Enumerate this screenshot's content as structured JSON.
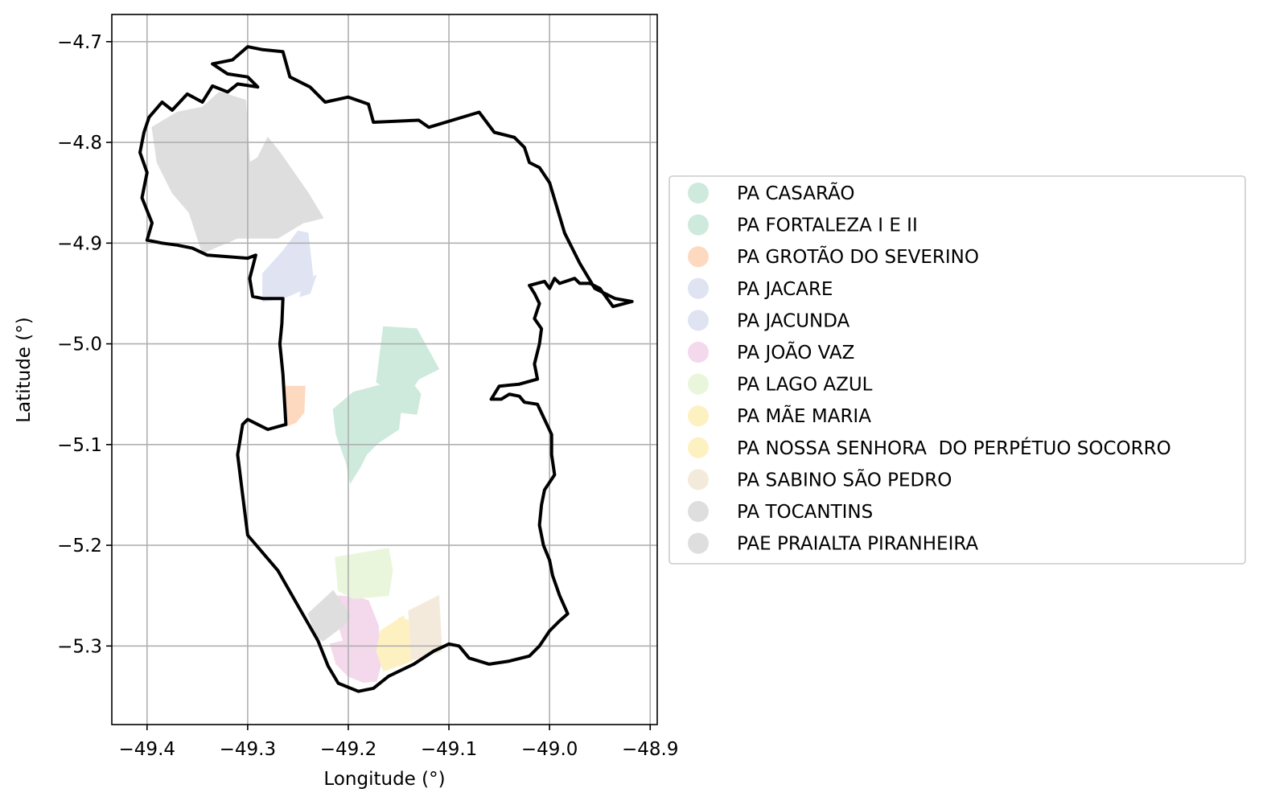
{
  "chart_data": {
    "type": "map",
    "xlabel": "Longitude (°)",
    "ylabel": "Latitude (°)",
    "xlim": [
      -49.435,
      -48.893
    ],
    "ylim": [
      -5.378,
      -4.673
    ],
    "x_ticks": [
      {
        "value": -49.4,
        "label": "−49.4"
      },
      {
        "value": -49.3,
        "label": "−49.3"
      },
      {
        "value": -49.2,
        "label": "−49.2"
      },
      {
        "value": -49.1,
        "label": "−49.1"
      },
      {
        "value": -49.0,
        "label": "−49.0"
      },
      {
        "value": -48.9,
        "label": "−48.9"
      }
    ],
    "y_ticks": [
      {
        "value": -4.7,
        "label": "−4.7"
      },
      {
        "value": -4.8,
        "label": "−4.8"
      },
      {
        "value": -4.9,
        "label": "−4.9"
      },
      {
        "value": -5.0,
        "label": "−5.0"
      },
      {
        "value": -5.1,
        "label": "−5.1"
      },
      {
        "value": -5.2,
        "label": "−5.2"
      },
      {
        "value": -5.3,
        "label": "−5.3"
      }
    ],
    "grid": true,
    "legend_position": "right",
    "boundary_color": "#000000",
    "settlements": [
      {
        "name": "PA CASARÃO",
        "color": "#cdeadc",
        "polygon": [
          [
            -49.132,
            -4.985
          ],
          [
            -49.165,
            -4.983
          ],
          [
            -49.172,
            -5.038
          ],
          [
            -49.16,
            -5.045
          ],
          [
            -49.14,
            -5.05
          ],
          [
            -49.13,
            -5.035
          ],
          [
            -49.11,
            -5.025
          ]
        ]
      },
      {
        "name": "PA FORTALEZA I E II",
        "color": "#cdeadc",
        "polygon": [
          [
            -49.215,
            -5.065
          ],
          [
            -49.195,
            -5.048
          ],
          [
            -49.165,
            -5.04
          ],
          [
            -49.143,
            -5.03
          ],
          [
            -49.128,
            -5.05
          ],
          [
            -49.132,
            -5.07
          ],
          [
            -49.148,
            -5.068
          ],
          [
            -49.15,
            -5.085
          ],
          [
            -49.17,
            -5.098
          ],
          [
            -49.182,
            -5.11
          ],
          [
            -49.188,
            -5.122
          ],
          [
            -49.198,
            -5.138
          ],
          [
            -49.202,
            -5.118
          ],
          [
            -49.212,
            -5.09
          ]
        ]
      },
      {
        "name": "PA GROTÃO DO SEVERINO",
        "color": "#fdd9bf",
        "polygon": [
          [
            -49.262,
            -5.042
          ],
          [
            -49.243,
            -5.042
          ],
          [
            -49.244,
            -5.068
          ],
          [
            -49.252,
            -5.078
          ],
          [
            -49.262,
            -5.082
          ]
        ]
      },
      {
        "name": "PA JACARE",
        "color": "#dfe3f2",
        "polygon": [
          [
            -49.285,
            -4.93
          ],
          [
            -49.265,
            -4.908
          ],
          [
            -49.25,
            -4.888
          ],
          [
            -49.24,
            -4.89
          ],
          [
            -49.235,
            -4.935
          ],
          [
            -49.242,
            -4.945
          ],
          [
            -49.265,
            -4.955
          ],
          [
            -49.285,
            -4.958
          ]
        ]
      },
      {
        "name": "PA JACUNDA",
        "color": "#dfe3f2",
        "polygon": [
          [
            -49.245,
            -4.94
          ],
          [
            -49.232,
            -4.932
          ],
          [
            -49.238,
            -4.95
          ],
          [
            -49.248,
            -4.953
          ]
        ]
      },
      {
        "name": "PA JOÃO VAZ",
        "color": "#f4d8ec",
        "polygon": [
          [
            -49.21,
            -5.25
          ],
          [
            -49.19,
            -5.252
          ],
          [
            -49.18,
            -5.255
          ],
          [
            -49.17,
            -5.28
          ],
          [
            -49.168,
            -5.32
          ],
          [
            -49.172,
            -5.335
          ],
          [
            -49.185,
            -5.336
          ],
          [
            -49.2,
            -5.33
          ],
          [
            -49.212,
            -5.318
          ],
          [
            -49.218,
            -5.298
          ],
          [
            -49.205,
            -5.295
          ],
          [
            -49.212,
            -5.272
          ]
        ]
      },
      {
        "name": "PA LAGO AZUL",
        "color": "#eaf6db",
        "polygon": [
          [
            -49.213,
            -5.212
          ],
          [
            -49.16,
            -5.203
          ],
          [
            -49.156,
            -5.225
          ],
          [
            -49.16,
            -5.25
          ],
          [
            -49.195,
            -5.253
          ],
          [
            -49.21,
            -5.245
          ]
        ]
      },
      {
        "name": "PA MÃE MARIA",
        "color": "#fdf1c2",
        "polygon": [
          [
            -49.168,
            -5.285
          ],
          [
            -49.145,
            -5.27
          ],
          [
            -49.137,
            -5.315
          ],
          [
            -49.165,
            -5.325
          ],
          [
            -49.172,
            -5.305
          ]
        ]
      },
      {
        "name": "PA NOSSA SENHORA  DO PERPÉTUO SOCORRO",
        "color": "#fdf1c2",
        "polygon": [
          [
            -49.15,
            -5.272
          ],
          [
            -49.138,
            -5.275
          ],
          [
            -49.136,
            -5.31
          ],
          [
            -49.148,
            -5.3
          ]
        ]
      },
      {
        "name": "PA SABINO SÃO PEDRO",
        "color": "#f4eadc",
        "polygon": [
          [
            -49.14,
            -5.265
          ],
          [
            -49.11,
            -5.25
          ],
          [
            -49.107,
            -5.305
          ],
          [
            -49.137,
            -5.314
          ]
        ]
      },
      {
        "name": "PA TOCANTINS",
        "color": "#dedede",
        "polygon": [
          [
            -49.395,
            -4.785
          ],
          [
            -49.37,
            -4.77
          ],
          [
            -49.345,
            -4.765
          ],
          [
            -49.328,
            -4.75
          ],
          [
            -49.302,
            -4.758
          ],
          [
            -49.3,
            -4.79
          ],
          [
            -49.298,
            -4.82
          ],
          [
            -49.29,
            -4.815
          ],
          [
            -49.28,
            -4.795
          ],
          [
            -49.268,
            -4.81
          ],
          [
            -49.24,
            -4.85
          ],
          [
            -49.225,
            -4.875
          ],
          [
            -49.245,
            -4.88
          ],
          [
            -49.27,
            -4.895
          ],
          [
            -49.31,
            -4.895
          ],
          [
            -49.345,
            -4.91
          ],
          [
            -49.358,
            -4.87
          ],
          [
            -49.375,
            -4.85
          ],
          [
            -49.39,
            -4.82
          ]
        ]
      },
      {
        "name": "PAE PRAIALTA PIRANHEIRA",
        "color": "#dedede",
        "polygon": [
          [
            -49.24,
            -5.268
          ],
          [
            -49.215,
            -5.245
          ],
          [
            -49.198,
            -5.27
          ],
          [
            -49.205,
            -5.28
          ],
          [
            -49.225,
            -5.295
          ],
          [
            -49.232,
            -5.29
          ]
        ]
      }
    ],
    "boundary": [
      [
        -49.4,
        -4.897
      ],
      [
        -49.395,
        -4.88
      ],
      [
        -49.405,
        -4.855
      ],
      [
        -49.4,
        -4.83
      ],
      [
        -49.407,
        -4.81
      ],
      [
        -49.403,
        -4.79
      ],
      [
        -49.398,
        -4.775
      ],
      [
        -49.385,
        -4.76
      ],
      [
        -49.375,
        -4.768
      ],
      [
        -49.36,
        -4.752
      ],
      [
        -49.345,
        -4.76
      ],
      [
        -49.335,
        -4.744
      ],
      [
        -49.32,
        -4.75
      ],
      [
        -49.31,
        -4.742
      ],
      [
        -49.29,
        -4.745
      ],
      [
        -49.3,
        -4.735
      ],
      [
        -49.32,
        -4.732
      ],
      [
        -49.335,
        -4.722
      ],
      [
        -49.315,
        -4.718
      ],
      [
        -49.3,
        -4.705
      ],
      [
        -49.285,
        -4.708
      ],
      [
        -49.265,
        -4.71
      ],
      [
        -49.258,
        -4.735
      ],
      [
        -49.238,
        -4.745
      ],
      [
        -49.223,
        -4.76
      ],
      [
        -49.2,
        -4.755
      ],
      [
        -49.18,
        -4.762
      ],
      [
        -49.175,
        -4.78
      ],
      [
        -49.13,
        -4.778
      ],
      [
        -49.12,
        -4.785
      ],
      [
        -49.07,
        -4.77
      ],
      [
        -49.055,
        -4.79
      ],
      [
        -49.035,
        -4.795
      ],
      [
        -49.025,
        -4.805
      ],
      [
        -49.02,
        -4.82
      ],
      [
        -49.01,
        -4.825
      ],
      [
        -49.0,
        -4.84
      ],
      [
        -48.985,
        -4.89
      ],
      [
        -48.97,
        -4.92
      ],
      [
        -48.955,
        -4.945
      ],
      [
        -48.935,
        -4.955
      ],
      [
        -48.918,
        -4.958
      ],
      [
        -48.937,
        -4.963
      ],
      [
        -48.95,
        -4.945
      ],
      [
        -48.96,
        -4.94
      ],
      [
        -48.97,
        -4.94
      ],
      [
        -48.975,
        -4.935
      ],
      [
        -48.99,
        -4.94
      ],
      [
        -48.995,
        -4.935
      ],
      [
        -49.0,
        -4.945
      ],
      [
        -49.005,
        -4.938
      ],
      [
        -49.02,
        -4.942
      ],
      [
        -49.015,
        -4.95
      ],
      [
        -49.01,
        -4.96
      ],
      [
        -49.015,
        -4.975
      ],
      [
        -49.008,
        -4.985
      ],
      [
        -49.01,
        -5.0
      ],
      [
        -49.015,
        -5.02
      ],
      [
        -49.012,
        -5.035
      ],
      [
        -49.03,
        -5.04
      ],
      [
        -49.05,
        -5.042
      ],
      [
        -49.058,
        -5.055
      ],
      [
        -49.048,
        -5.055
      ],
      [
        -49.04,
        -5.05
      ],
      [
        -49.03,
        -5.052
      ],
      [
        -49.025,
        -5.058
      ],
      [
        -49.012,
        -5.06
      ],
      [
        -49.005,
        -5.075
      ],
      [
        -48.998,
        -5.09
      ],
      [
        -48.998,
        -5.11
      ],
      [
        -48.995,
        -5.13
      ],
      [
        -49.005,
        -5.145
      ],
      [
        -49.008,
        -5.16
      ],
      [
        -49.01,
        -5.18
      ],
      [
        -49.006,
        -5.2
      ],
      [
        -49.0,
        -5.215
      ],
      [
        -48.997,
        -5.23
      ],
      [
        -48.99,
        -5.25
      ],
      [
        -48.982,
        -5.268
      ],
      [
        -48.99,
        -5.275
      ],
      [
        -49.0,
        -5.285
      ],
      [
        -49.01,
        -5.3
      ],
      [
        -49.02,
        -5.31
      ],
      [
        -49.04,
        -5.315
      ],
      [
        -49.06,
        -5.318
      ],
      [
        -49.08,
        -5.312
      ],
      [
        -49.09,
        -5.3
      ],
      [
        -49.1,
        -5.298
      ],
      [
        -49.115,
        -5.305
      ],
      [
        -49.135,
        -5.318
      ],
      [
        -49.16,
        -5.33
      ],
      [
        -49.175,
        -5.342
      ],
      [
        -49.19,
        -5.345
      ],
      [
        -49.21,
        -5.337
      ],
      [
        -49.22,
        -5.32
      ],
      [
        -49.23,
        -5.295
      ],
      [
        -49.25,
        -5.26
      ],
      [
        -49.27,
        -5.225
      ],
      [
        -49.3,
        -5.19
      ],
      [
        -49.305,
        -5.15
      ],
      [
        -49.31,
        -5.11
      ],
      [
        -49.305,
        -5.08
      ],
      [
        -49.3,
        -5.075
      ],
      [
        -49.29,
        -5.08
      ],
      [
        -49.28,
        -5.085
      ],
      [
        -49.262,
        -5.08
      ],
      [
        -49.265,
        -5.03
      ],
      [
        -49.268,
        -5.0
      ],
      [
        -49.266,
        -4.98
      ],
      [
        -49.265,
        -4.955
      ],
      [
        -49.285,
        -4.955
      ],
      [
        -49.295,
        -4.953
      ],
      [
        -49.298,
        -4.935
      ],
      [
        -49.292,
        -4.912
      ],
      [
        -49.3,
        -4.915
      ],
      [
        -49.34,
        -4.912
      ],
      [
        -49.355,
        -4.905
      ],
      [
        -49.37,
        -4.902
      ],
      [
        -49.385,
        -4.9
      ],
      [
        -49.4,
        -4.897
      ]
    ]
  }
}
